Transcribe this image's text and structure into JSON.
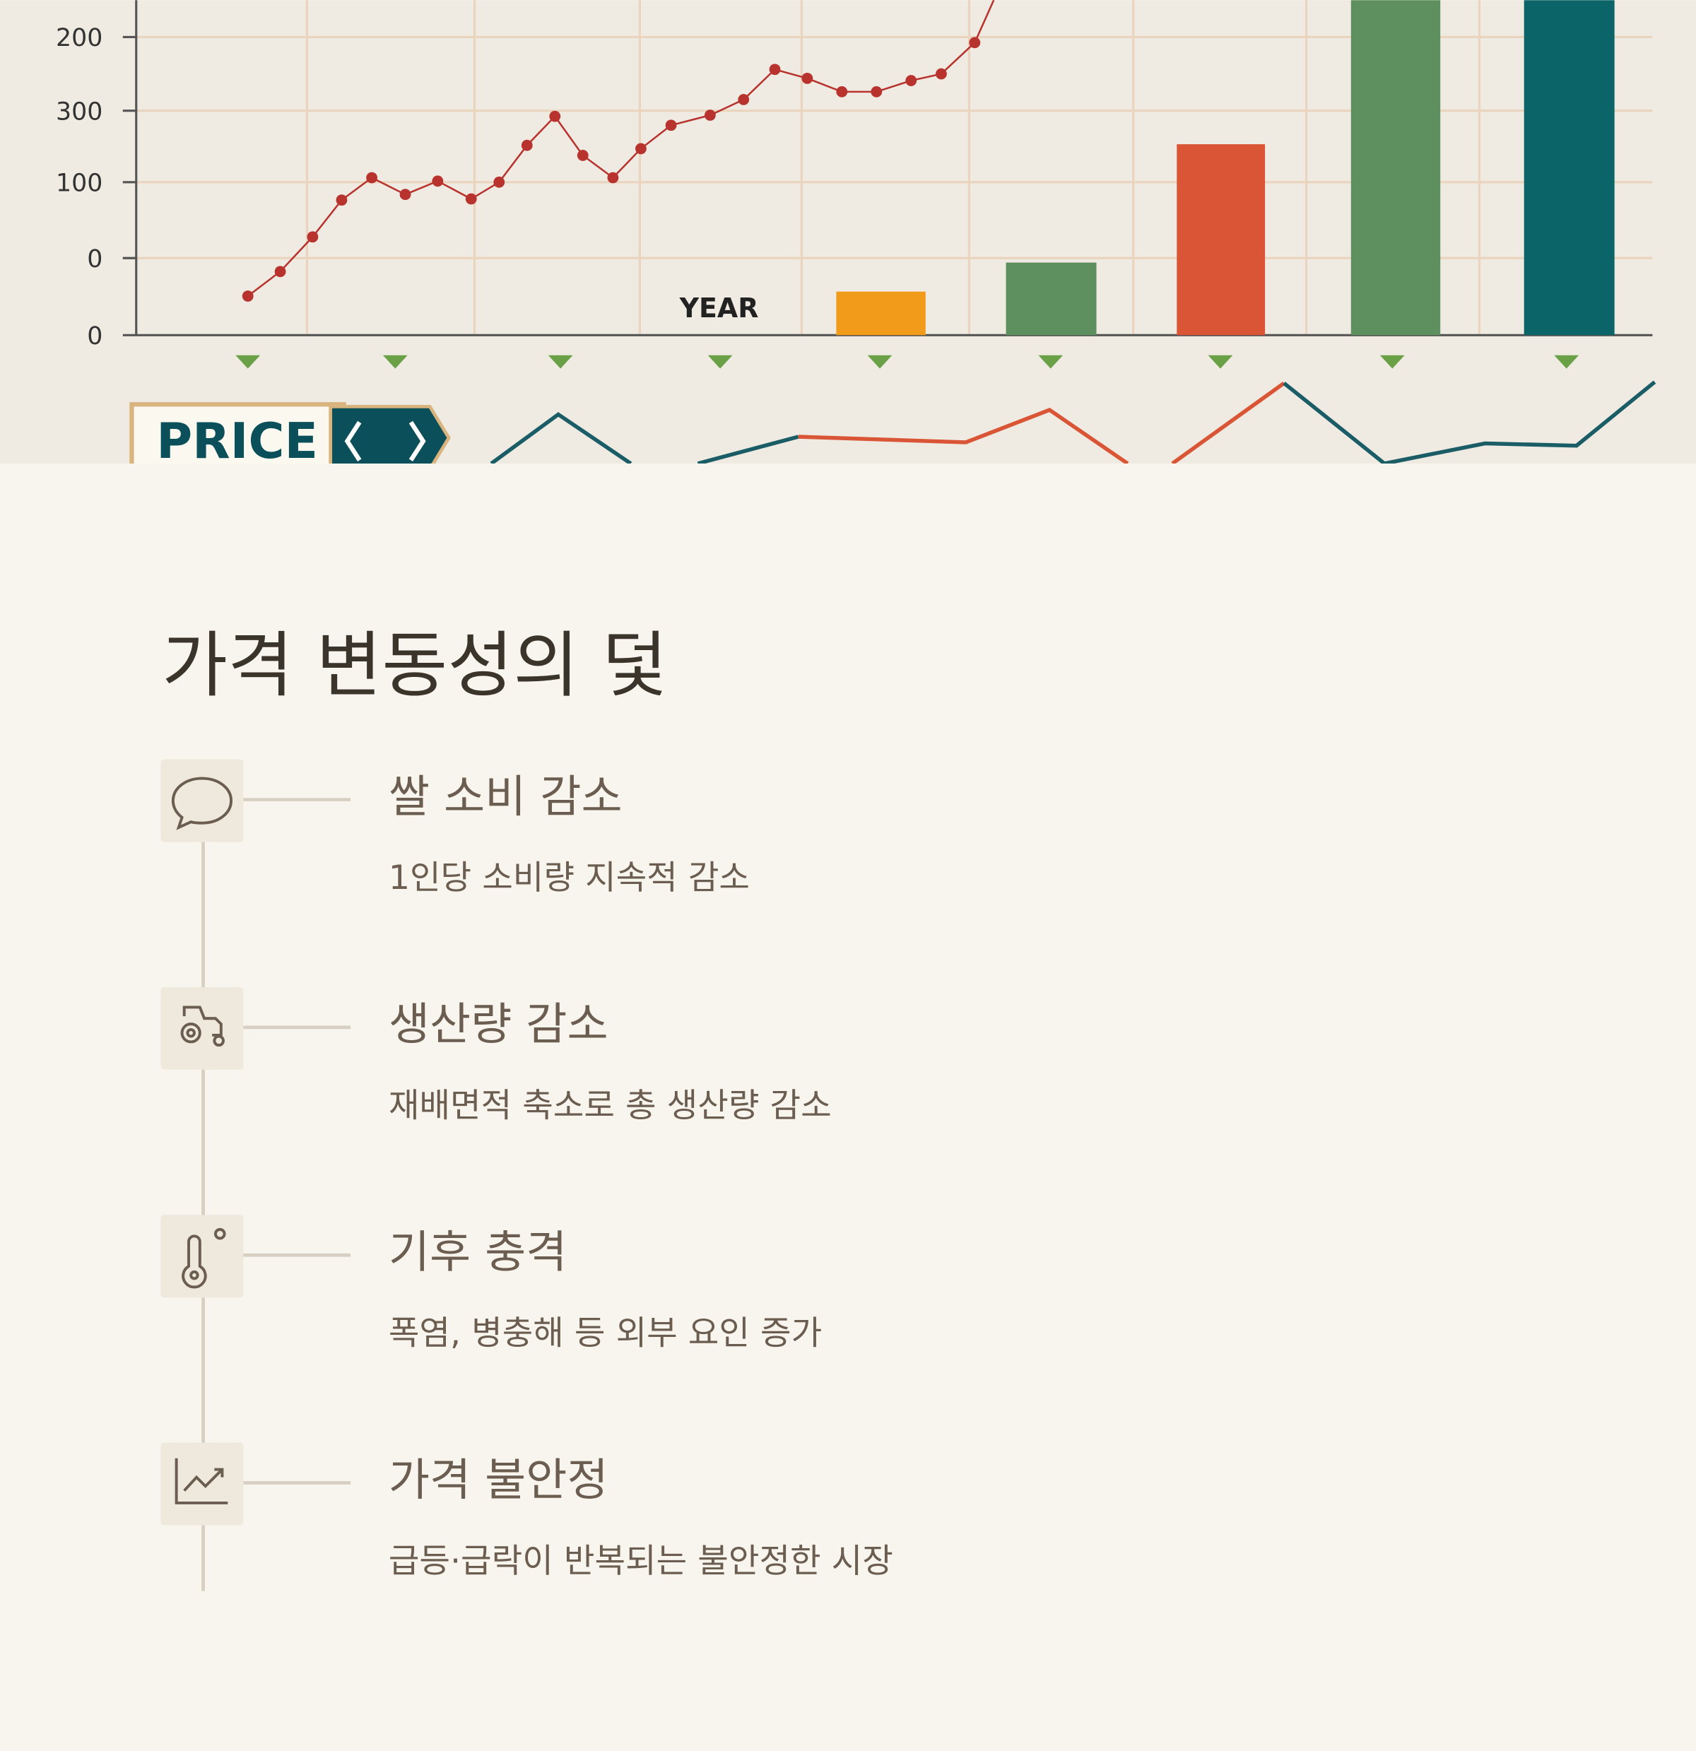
{
  "hero": {
    "axis_labels": [
      "200",
      "300",
      "100",
      "0",
      "0"
    ],
    "year_label": "YEAR",
    "price_label": "PRICE"
  },
  "section": {
    "title": "가격 변동성의 덫",
    "items": [
      {
        "title": "쌀 소비 감소",
        "desc": "1인당 소비량 지속적 감소"
      },
      {
        "title": "생산량 감소",
        "desc": "재배면적 축소로 총 생산량 감소"
      },
      {
        "title": "기후 충격",
        "desc": "폭염, 병충해 등 외부 요인 증가"
      },
      {
        "title": "가격 불안정",
        "desc": "급등·급락이 반복되는 불안정한 시장"
      }
    ]
  }
}
